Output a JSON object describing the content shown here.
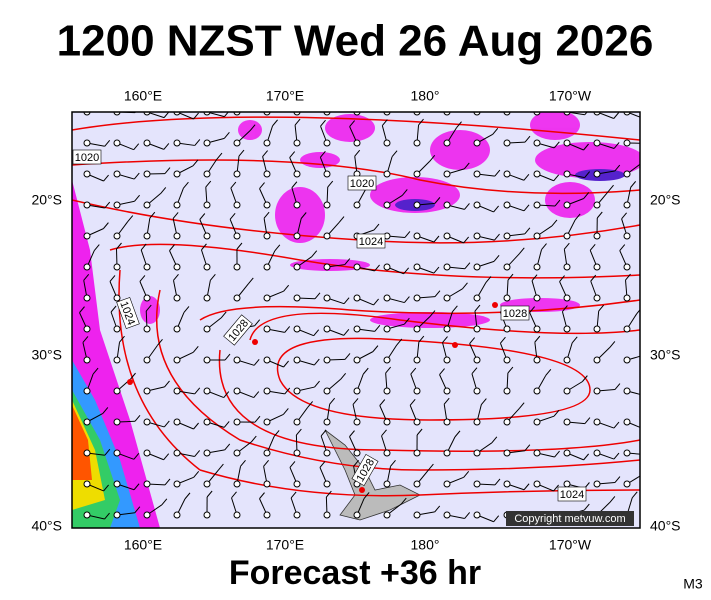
{
  "title": "1200 NZST Wed 26 Aug 2026",
  "lon_labels": [
    "160°E",
    "170°E",
    "180°",
    "170°W"
  ],
  "lat_labels": [
    "20°S",
    "30°S",
    "40°S"
  ],
  "isobar_labels": [
    "1020",
    "1020",
    "1024",
    "1024",
    "1028",
    "1028",
    "1028",
    "1024"
  ],
  "copyright": "Copyright metvuw.com",
  "footer": "Forecast +36 hr",
  "code": "M3"
}
